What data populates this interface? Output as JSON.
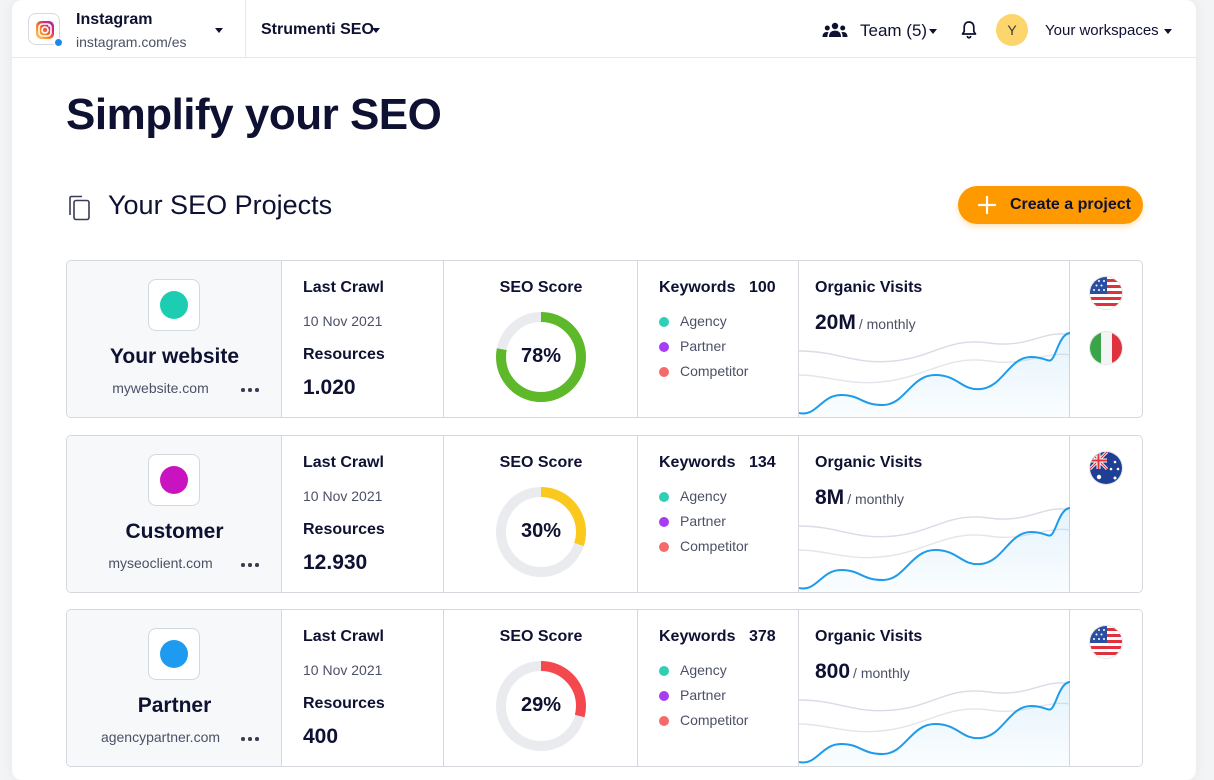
{
  "header": {
    "project_name": "Instagram",
    "project_url": "instagram.com/es",
    "tools_label": "Strumenti SEO",
    "team_label": "Team (5)",
    "avatar_initial": "Y",
    "workspaces_label": "Your workspaces"
  },
  "hero_title": "Simplify your SEO",
  "section_title": "Your SEO Projects",
  "create_button_label": "Create a project",
  "labels": {
    "last_crawl": "Last Crawl",
    "resources": "Resources",
    "seo_score": "SEO Score",
    "keywords": "Keywords",
    "organic_visits": "Organic Visits",
    "monthly": "/ monthly",
    "legend_agency": "Agency",
    "legend_partner": "Partner",
    "legend_competitor": "Competitor"
  },
  "colors": {
    "accent": "#ff9900",
    "legend_agency": "#2ecfb5",
    "legend_partner": "#a53ef0",
    "legend_competitor": "#f56a6a",
    "sparkline": "#1e9be9"
  },
  "projects": [
    {
      "name": "Your website",
      "url": "mywebsite.com",
      "logo_color": "#1ccdb2",
      "last_crawl": "10 Nov 2021",
      "resources": "1.020",
      "seo_score": 78,
      "seo_score_label": "78%",
      "score_color": "#5db82a",
      "keywords": "100",
      "visits": "20M",
      "flags": [
        "us-flag-icon",
        "it-flag-icon"
      ]
    },
    {
      "name": "Customer",
      "url": "myseoclient.com",
      "logo_color": "#c913c0",
      "last_crawl": "10 Nov 2021",
      "resources": "12.930",
      "seo_score": 30,
      "seo_score_label": "30%",
      "score_color": "#fbc81d",
      "keywords": "134",
      "visits": "8M",
      "flags": [
        "au-flag-icon"
      ]
    },
    {
      "name": "Partner",
      "url": "agencypartner.com",
      "logo_color": "#1e9bf0",
      "last_crawl": "10 Nov 2021",
      "resources": "400",
      "seo_score": 29,
      "seo_score_label": "29%",
      "score_color": "#f5474e",
      "keywords": "378",
      "visits": "800",
      "flags": [
        "us-flag-icon"
      ]
    }
  ]
}
